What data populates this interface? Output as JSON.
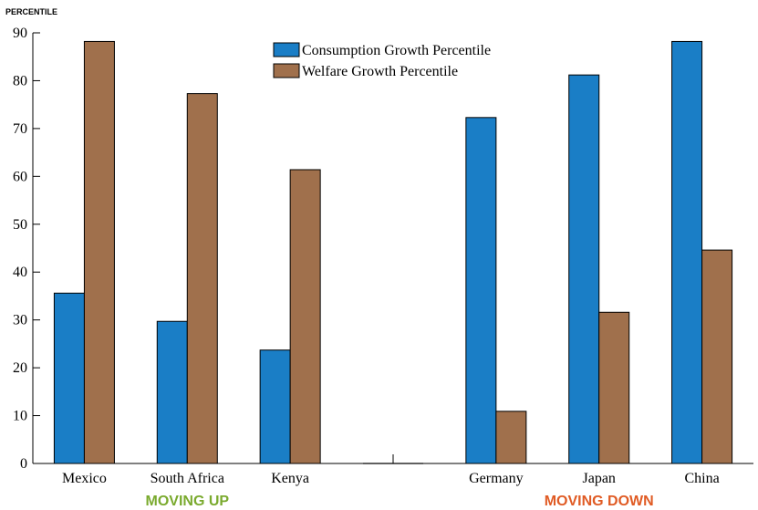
{
  "chart_data": {
    "type": "bar",
    "ylabel": "PERCENTILE",
    "ylim": [
      0,
      90
    ],
    "yticks": [
      0,
      10,
      20,
      30,
      40,
      50,
      60,
      70,
      80,
      90
    ],
    "categories": [
      "Mexico",
      "South Africa",
      "Kenya",
      "",
      "Germany",
      "Japan",
      "China"
    ],
    "series": [
      {
        "name": "Consumption Growth Percentile",
        "color": "#1a7ec6",
        "values": [
          35.6,
          29.7,
          23.7,
          null,
          72.3,
          81.2,
          88.2
        ]
      },
      {
        "name": "Welfare Growth Percentile",
        "color": "#a0704c",
        "values": [
          88.2,
          77.3,
          61.4,
          null,
          10.9,
          31.6,
          44.6
        ]
      }
    ],
    "groups": [
      {
        "label": "MOVING UP",
        "color": "#7aaa2e",
        "categories": [
          "Mexico",
          "South Africa",
          "Kenya"
        ]
      },
      {
        "label": "MOVING DOWN",
        "color": "#e05b24",
        "categories": [
          "Germany",
          "Japan",
          "China"
        ]
      }
    ],
    "legend": "top-center",
    "grid": false
  }
}
